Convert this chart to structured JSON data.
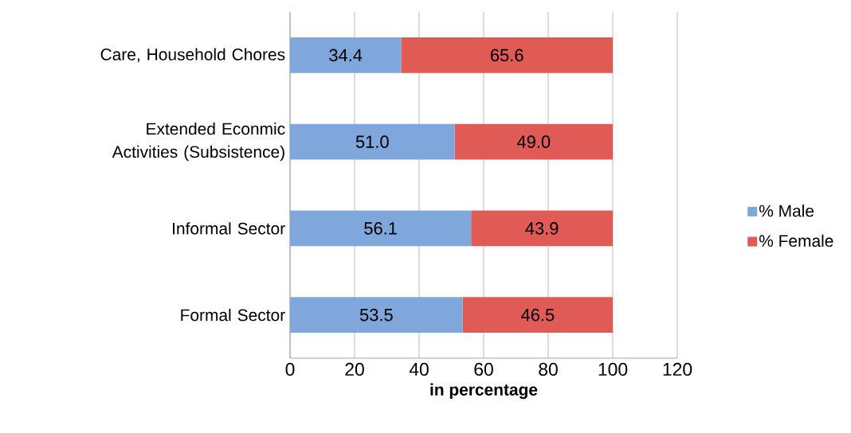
{
  "chart_data": {
    "type": "bar",
    "orientation": "horizontal",
    "stacked": true,
    "categories": [
      "Care, Household Chores",
      "Extended Econmic Activities (Subsistence)",
      "Informal Sector",
      "Formal Sector"
    ],
    "series": [
      {
        "name": "% Male",
        "color": "#7fa7db",
        "values": [
          34.4,
          51.0,
          56.1,
          53.5
        ],
        "value_labels": [
          "34.4",
          "51.0",
          "56.1",
          "53.5"
        ]
      },
      {
        "name": "% Female",
        "color": "#e05a56",
        "values": [
          65.6,
          49.0,
          43.9,
          46.5
        ],
        "value_labels": [
          "65.6",
          "49.0",
          "43.9",
          "46.5"
        ]
      }
    ],
    "xlabel": "in percentage",
    "xlim": [
      0,
      120
    ],
    "xticks": [
      0,
      20,
      40,
      60,
      80,
      100,
      120
    ],
    "grid": "x",
    "legend": "right"
  }
}
